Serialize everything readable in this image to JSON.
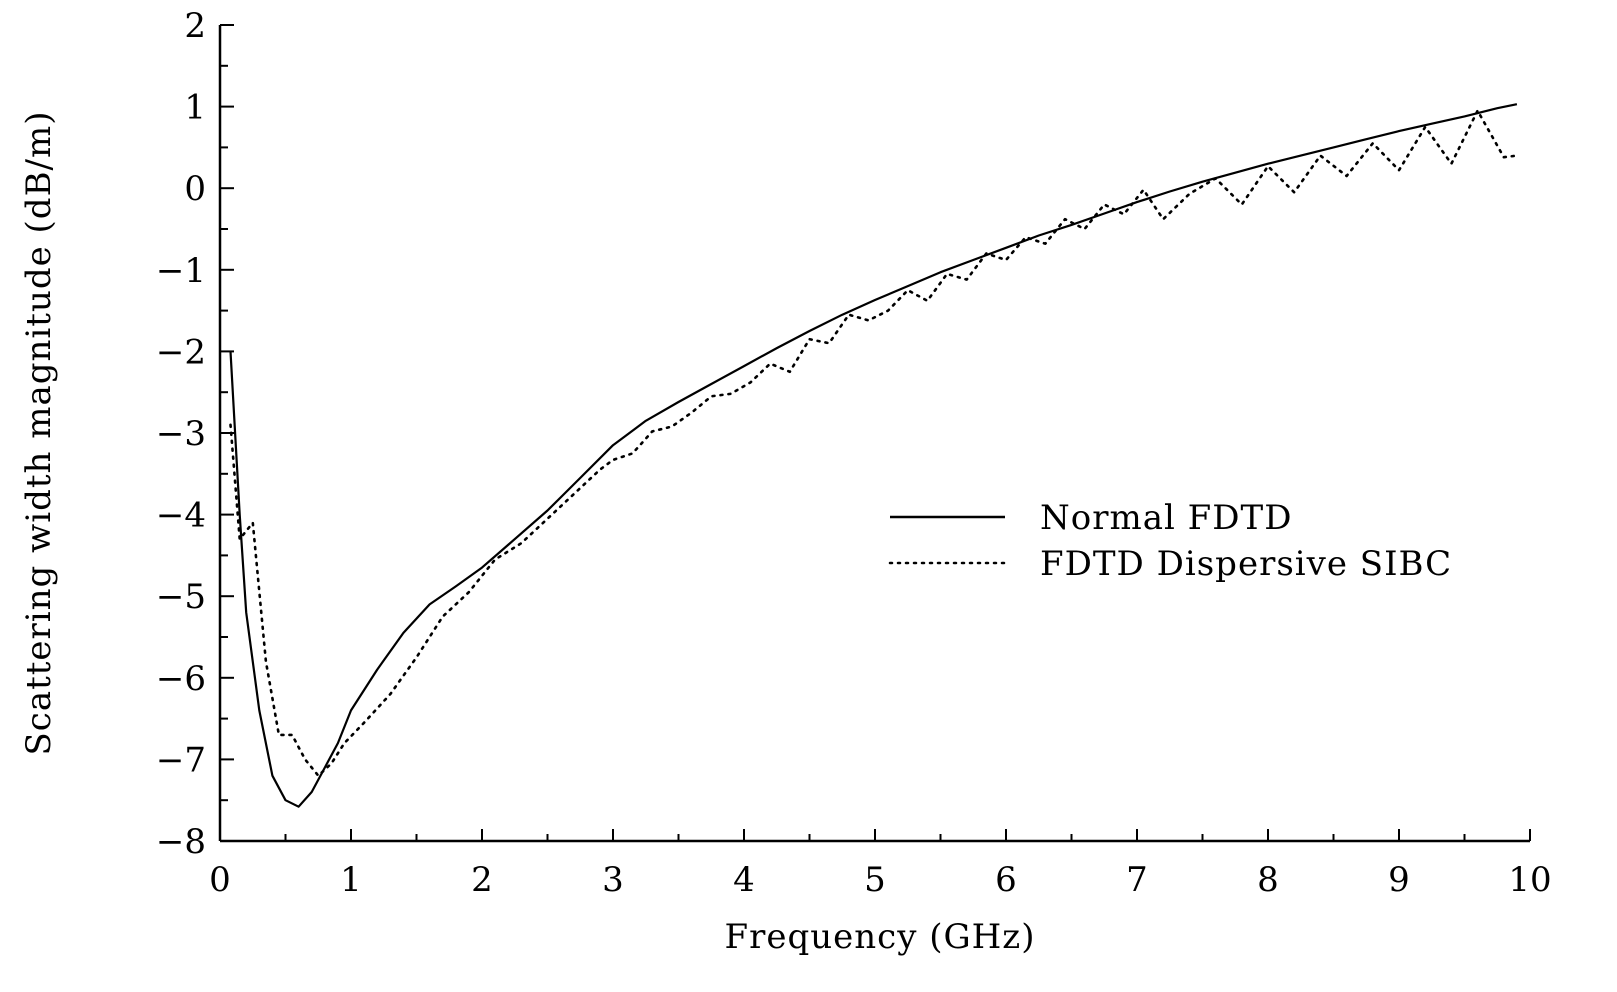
{
  "chart_data": {
    "type": "line",
    "title": "",
    "xlabel": "Frequency (GHz)",
    "ylabel": "Scattering width magnitude (dB/m)",
    "xlim": [
      0,
      10
    ],
    "ylim": [
      -8,
      2
    ],
    "x_ticks": [
      0,
      1,
      2,
      3,
      4,
      5,
      6,
      7,
      8,
      9,
      10
    ],
    "y_ticks": [
      2,
      1,
      0,
      -1,
      -2,
      -3,
      -4,
      -5,
      -6,
      -7,
      -8
    ],
    "x_tick_labels": [
      "0",
      "1",
      "2",
      "3",
      "4",
      "5",
      "6",
      "7",
      "8",
      "9",
      "10"
    ],
    "y_tick_labels": [
      "2",
      "1",
      "0",
      "−1",
      "−2",
      "−3",
      "−4",
      "−5",
      "−6",
      "−7",
      "−8"
    ],
    "grid": false,
    "legend_position": "right-center",
    "series": [
      {
        "name": "Normal FDTD",
        "style": "solid",
        "color": "#000000",
        "x": [
          0.08,
          0.15,
          0.2,
          0.3,
          0.4,
          0.5,
          0.6,
          0.7,
          0.8,
          0.9,
          1.0,
          1.2,
          1.4,
          1.6,
          1.8,
          2.0,
          2.25,
          2.5,
          2.75,
          3.0,
          3.25,
          3.5,
          3.75,
          4.0,
          4.25,
          4.5,
          4.75,
          5.0,
          5.25,
          5.5,
          5.75,
          6.0,
          6.25,
          6.5,
          6.75,
          7.0,
          7.25,
          7.5,
          7.75,
          8.0,
          8.25,
          8.5,
          8.75,
          9.0,
          9.25,
          9.5,
          9.75,
          9.9
        ],
        "y": [
          -2.0,
          -4.0,
          -5.2,
          -6.4,
          -7.2,
          -7.5,
          -7.58,
          -7.4,
          -7.1,
          -6.8,
          -6.4,
          -5.9,
          -5.45,
          -5.1,
          -4.88,
          -4.65,
          -4.3,
          -3.95,
          -3.55,
          -3.15,
          -2.85,
          -2.62,
          -2.4,
          -2.18,
          -1.96,
          -1.75,
          -1.55,
          -1.37,
          -1.2,
          -1.03,
          -0.88,
          -0.73,
          -0.58,
          -0.45,
          -0.31,
          -0.17,
          -0.04,
          0.08,
          0.19,
          0.3,
          0.4,
          0.5,
          0.6,
          0.7,
          0.79,
          0.88,
          0.98,
          1.03
        ]
      },
      {
        "name": "FDTD Dispersive SIBC",
        "style": "dotted",
        "color": "#000000",
        "x": [
          0.08,
          0.15,
          0.25,
          0.35,
          0.45,
          0.55,
          0.65,
          0.75,
          0.85,
          0.95,
          1.1,
          1.3,
          1.5,
          1.7,
          1.9,
          2.1,
          2.3,
          2.5,
          2.7,
          2.9,
          3.0,
          3.15,
          3.3,
          3.45,
          3.6,
          3.75,
          3.9,
          4.05,
          4.2,
          4.35,
          4.5,
          4.65,
          4.8,
          4.95,
          5.1,
          5.25,
          5.4,
          5.55,
          5.7,
          5.85,
          6.0,
          6.15,
          6.3,
          6.45,
          6.6,
          6.75,
          6.9,
          7.05,
          7.2,
          7.4,
          7.6,
          7.8,
          8.0,
          8.2,
          8.4,
          8.6,
          8.8,
          9.0,
          9.2,
          9.4,
          9.6,
          9.8,
          9.9
        ],
        "y": [
          -2.9,
          -4.3,
          -4.1,
          -5.8,
          -6.7,
          -6.7,
          -7.0,
          -7.2,
          -7.05,
          -6.8,
          -6.55,
          -6.2,
          -5.75,
          -5.25,
          -4.95,
          -4.55,
          -4.35,
          -4.05,
          -3.75,
          -3.45,
          -3.33,
          -3.25,
          -2.98,
          -2.92,
          -2.75,
          -2.55,
          -2.52,
          -2.38,
          -2.15,
          -2.25,
          -1.85,
          -1.9,
          -1.55,
          -1.62,
          -1.5,
          -1.25,
          -1.38,
          -1.05,
          -1.12,
          -0.8,
          -0.88,
          -0.6,
          -0.68,
          -0.38,
          -0.5,
          -0.2,
          -0.32,
          -0.02,
          -0.38,
          -0.07,
          0.12,
          -0.2,
          0.27,
          -0.05,
          0.4,
          0.15,
          0.55,
          0.22,
          0.75,
          0.3,
          0.95,
          0.38,
          0.4
        ]
      }
    ]
  }
}
